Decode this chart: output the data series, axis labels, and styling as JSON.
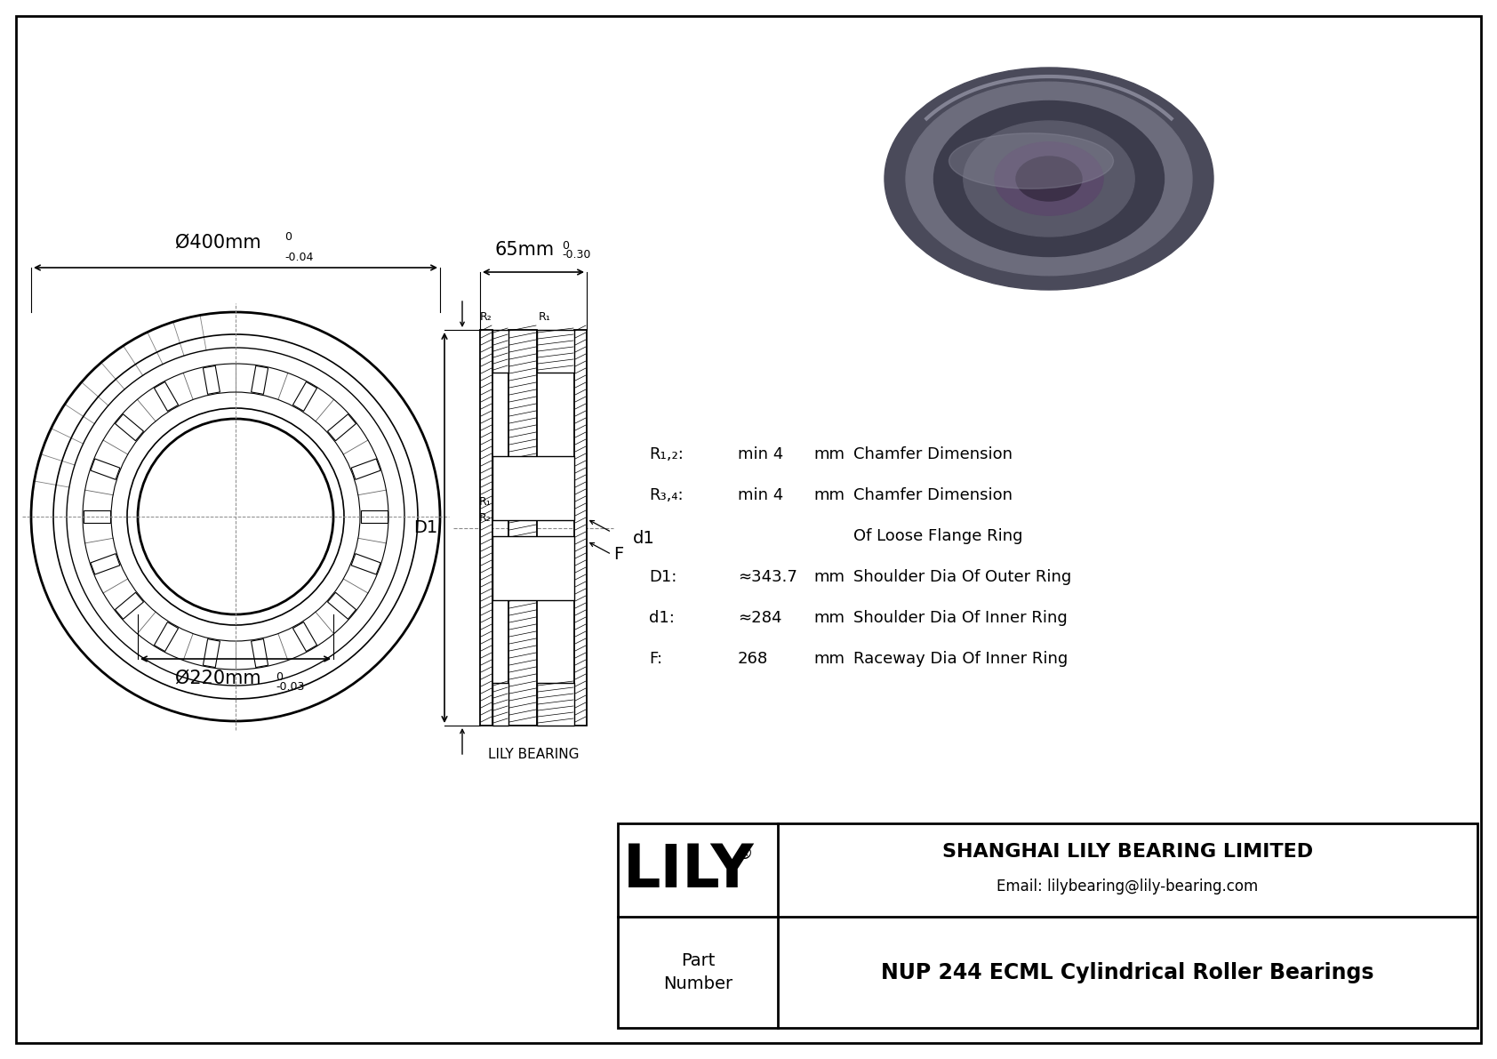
{
  "bg_color": "#ffffff",
  "line_color": "#000000",
  "title": "NUP 244 ECML Cylindrical Roller Bearings",
  "company": "SHANGHAI LILY BEARING LIMITED",
  "email": "Email: lilybearing@lily-bearing.com",
  "part_label": "Part\nNumber",
  "lily_bearing_text": "LILY BEARING",
  "dim_outer": "Ø400mm",
  "dim_outer_tol_top": "0",
  "dim_outer_tol_bot": "-0.04",
  "dim_inner": "Ø220mm",
  "dim_inner_tol_top": "0",
  "dim_inner_tol_bot": "-0.03",
  "dim_width": "65mm",
  "dim_width_tol_top": "0",
  "dim_width_tol_bot": "-0.30",
  "params": [
    {
      "symbol": "R₁,₂:",
      "value": "min 4",
      "unit": "mm",
      "desc": "Chamfer Dimension"
    },
    {
      "symbol": "R₃,₄:",
      "value": "min 4",
      "unit": "mm",
      "desc": "Chamfer Dimension"
    },
    {
      "symbol": "",
      "value": "",
      "unit": "",
      "desc": "Of Loose Flange Ring"
    },
    {
      "symbol": "D1:",
      "value": "≈343.7",
      "unit": "mm",
      "desc": "Shoulder Dia Of Outer Ring"
    },
    {
      "symbol": "d1:",
      "value": "≈284",
      "unit": "mm",
      "desc": "Shoulder Dia Of Inner Ring"
    },
    {
      "symbol": "F:",
      "value": "268",
      "unit": "mm",
      "desc": "Raceway Dia Of Inner Ring"
    }
  ]
}
